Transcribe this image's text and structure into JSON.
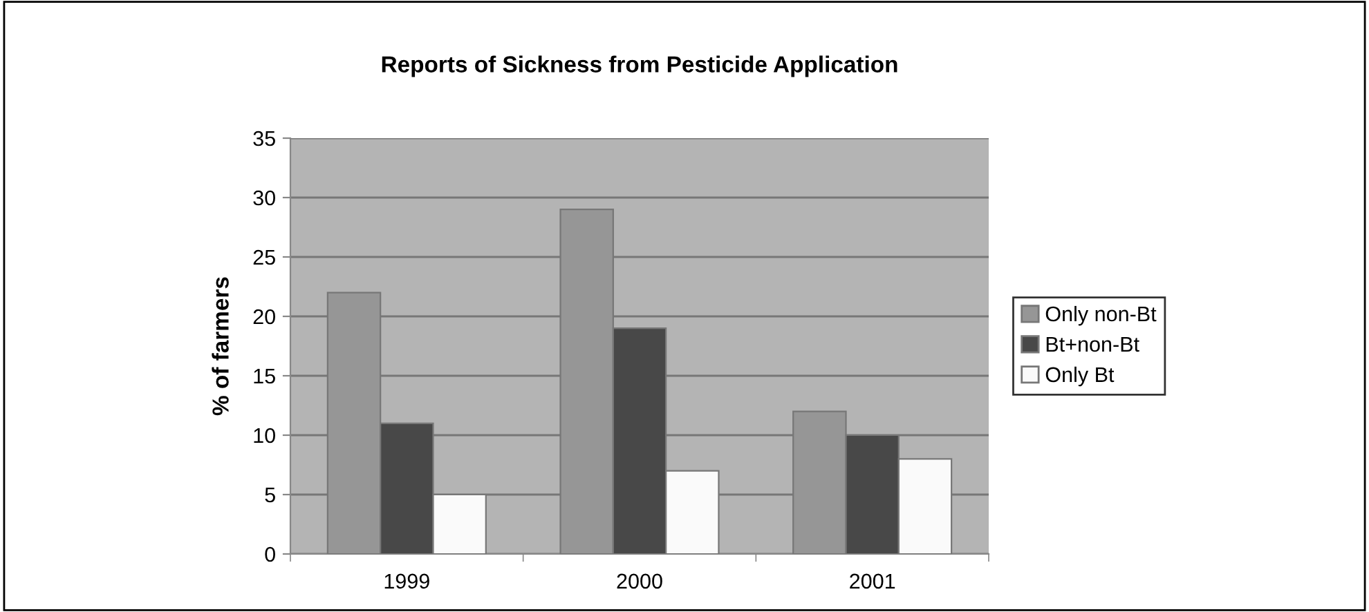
{
  "chart_data": {
    "type": "bar",
    "title": "Reports of Sickness from Pesticide Application",
    "ylabel": "% of farmers",
    "categories": [
      "1999",
      "2000",
      "2001"
    ],
    "series": [
      {
        "name": "Only non-Bt",
        "color": "#969696",
        "values": [
          22,
          29,
          12
        ]
      },
      {
        "name": "Bt+non-Bt",
        "color": "#484848",
        "values": [
          11,
          19,
          10
        ]
      },
      {
        "name": "Only Bt",
        "color": "#fafafa",
        "values": [
          5,
          7,
          8
        ]
      }
    ],
    "ylim": [
      0,
      35
    ],
    "yticks": [
      0,
      5,
      10,
      15,
      20,
      25,
      30,
      35
    ],
    "grid": "y",
    "legend": "right"
  }
}
